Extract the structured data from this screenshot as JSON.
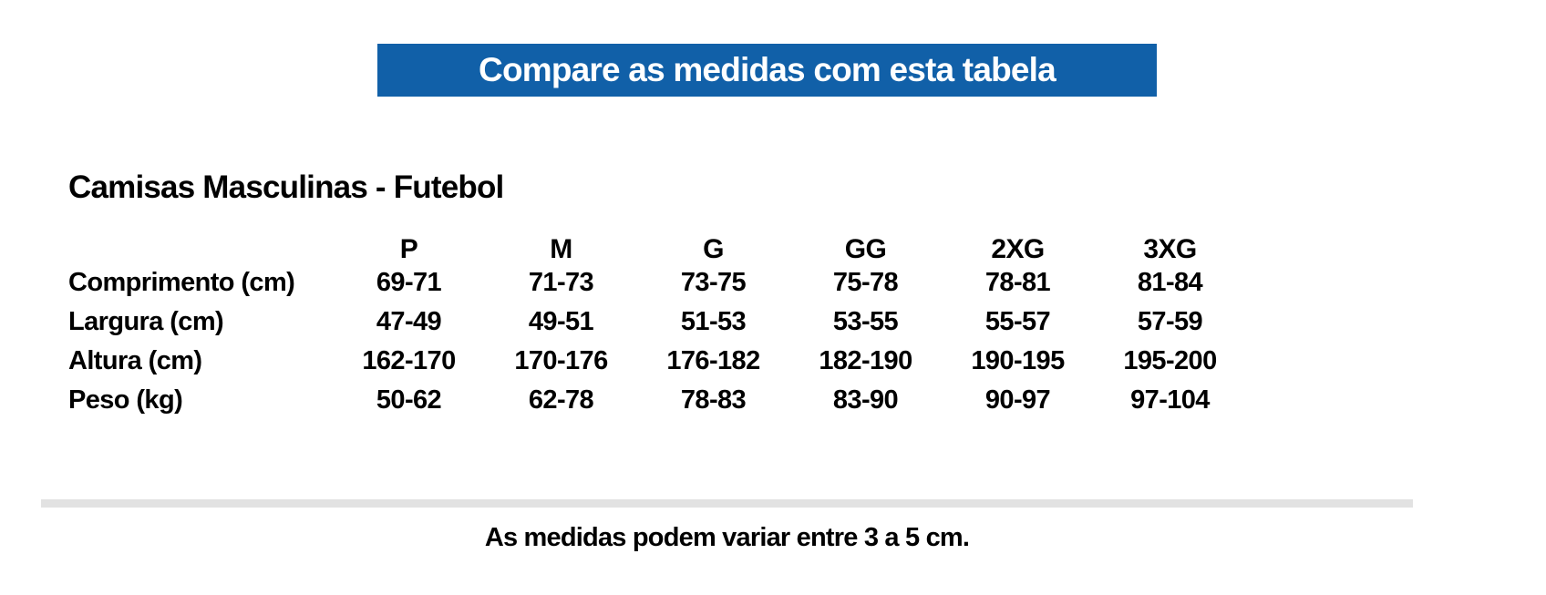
{
  "banner": {
    "label": "Compare as medidas com esta tabela",
    "bg_color": "#1160A8",
    "text_color": "#FFFFFF"
  },
  "chart_data": {
    "type": "table",
    "title": "Camisas Masculinas - Futebol",
    "columns": [
      "P",
      "M",
      "G",
      "GG",
      "2XG",
      "3XG"
    ],
    "rows": [
      {
        "label": "Comprimento (cm)",
        "values": [
          "69-71",
          "71-73",
          "73-75",
          "75-78",
          "78-81",
          "81-84"
        ]
      },
      {
        "label": "Largura (cm)",
        "values": [
          "47-49",
          "49-51",
          "51-53",
          "53-55",
          "55-57",
          "57-59"
        ]
      },
      {
        "label": "Altura (cm)",
        "values": [
          "162-170",
          "170-176",
          "176-182",
          "182-190",
          "190-195",
          "195-200"
        ]
      },
      {
        "label": "Peso (kg)",
        "values": [
          "50-62",
          "62-78",
          "78-83",
          "83-90",
          "90-97",
          "97-104"
        ]
      }
    ]
  },
  "footer": {
    "note": "As medidas podem variar entre 3 a 5 cm."
  }
}
